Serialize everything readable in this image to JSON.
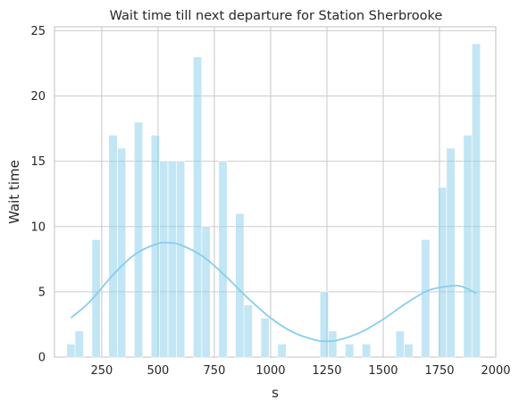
{
  "chart_data": {
    "type": "bar",
    "title": "Wait time till next departure for Station Sherbrooke",
    "xlabel": "s",
    "ylabel": "Wait time",
    "xlim": [
      40,
      2000
    ],
    "ylim": [
      0,
      25.3
    ],
    "xticks": [
      250,
      500,
      750,
      1000,
      1250,
      1500,
      1750,
      2000
    ],
    "yticks": [
      0,
      5,
      10,
      15,
      20,
      25
    ],
    "grid": true,
    "color": "#87ceeb",
    "bin_width": 37.5,
    "bins": [
      {
        "x": 113,
        "value": 1
      },
      {
        "x": 150,
        "value": 2
      },
      {
        "x": 225,
        "value": 9
      },
      {
        "x": 300,
        "value": 17
      },
      {
        "x": 338,
        "value": 16
      },
      {
        "x": 413,
        "value": 18
      },
      {
        "x": 488,
        "value": 17
      },
      {
        "x": 525,
        "value": 15
      },
      {
        "x": 563,
        "value": 15
      },
      {
        "x": 600,
        "value": 15
      },
      {
        "x": 675,
        "value": 23
      },
      {
        "x": 713,
        "value": 10
      },
      {
        "x": 788,
        "value": 15
      },
      {
        "x": 863,
        "value": 11
      },
      {
        "x": 900,
        "value": 4
      },
      {
        "x": 975,
        "value": 3
      },
      {
        "x": 1050,
        "value": 1
      },
      {
        "x": 1238,
        "value": 5
      },
      {
        "x": 1275,
        "value": 2
      },
      {
        "x": 1350,
        "value": 1
      },
      {
        "x": 1425,
        "value": 1
      },
      {
        "x": 1575,
        "value": 2
      },
      {
        "x": 1613,
        "value": 1
      },
      {
        "x": 1688,
        "value": 9
      },
      {
        "x": 1763,
        "value": 13
      },
      {
        "x": 1800,
        "value": 16
      },
      {
        "x": 1875,
        "value": 17
      },
      {
        "x": 1913,
        "value": 24
      }
    ],
    "kde": {
      "x": [
        113,
        200,
        300,
        400,
        500,
        550,
        600,
        700,
        800,
        900,
        1000,
        1100,
        1200,
        1250,
        1300,
        1400,
        1500,
        1600,
        1700,
        1800,
        1850,
        1913
      ],
      "y": [
        3.0,
        4.3,
        6.3,
        7.9,
        8.7,
        8.75,
        8.6,
        7.7,
        6.2,
        4.5,
        3.0,
        1.9,
        1.3,
        1.22,
        1.3,
        1.9,
        2.9,
        4.1,
        5.1,
        5.45,
        5.4,
        4.9
      ]
    }
  }
}
